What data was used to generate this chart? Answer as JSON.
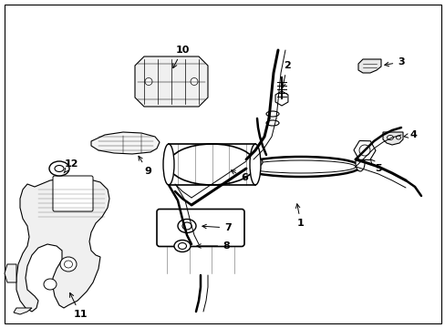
{
  "background_color": "#ffffff",
  "line_color": "#000000",
  "figure_width": 4.89,
  "figure_height": 3.6,
  "dpi": 100,
  "parts": {
    "pipe_lw": 1.8,
    "pipe_inner_lw": 0.7,
    "detail_lw": 0.5
  }
}
